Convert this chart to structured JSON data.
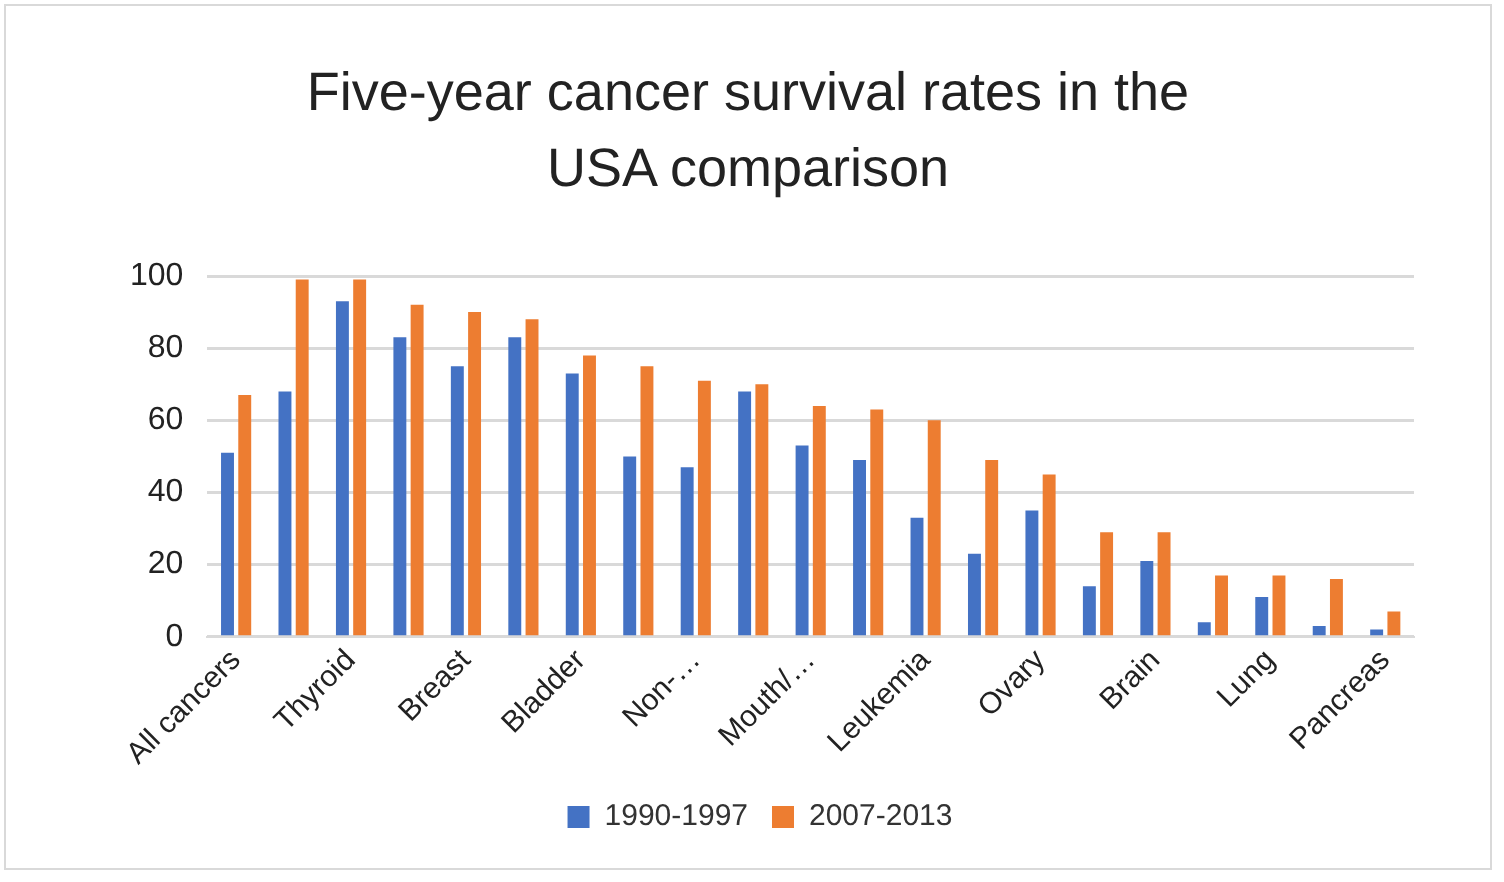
{
  "chart_data": {
    "type": "bar",
    "title": "Five-year cancer survival rates in the USA comparison",
    "categories": [
      "All cancers",
      null,
      "Thyroid",
      null,
      "Breast",
      null,
      "Bladder",
      null,
      "Non-…",
      null,
      "Mouth/…",
      null,
      "Leukemia",
      null,
      "Ovary",
      null,
      "Brain",
      null,
      "Lung",
      null,
      "Pancreas"
    ],
    "series": [
      {
        "name": "1990-1997",
        "color": "#4472c4",
        "values": [
          51,
          68,
          93,
          83,
          75,
          83,
          73,
          50,
          47,
          68,
          53,
          49,
          33,
          23,
          35,
          14,
          21,
          4,
          11,
          3,
          2
        ]
      },
      {
        "name": "2007-2013",
        "color": "#ed7d31",
        "values": [
          67,
          99,
          99,
          92,
          90,
          88,
          78,
          75,
          71,
          70,
          64,
          63,
          60,
          49,
          45,
          29,
          29,
          17,
          17,
          16,
          7
        ]
      }
    ],
    "ylim": [
      0,
      100
    ],
    "yticks": [
      0,
      20,
      40,
      60,
      80,
      100
    ],
    "grid": "y",
    "legend": "bottom"
  }
}
